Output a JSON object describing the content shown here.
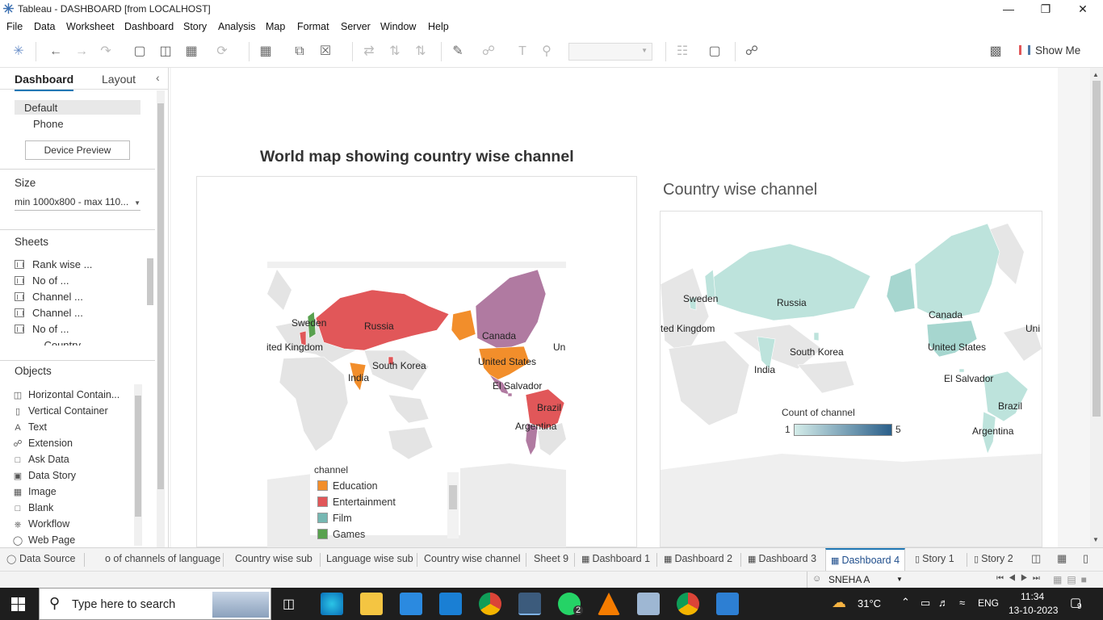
{
  "window": {
    "title": "Tableau - DASHBOARD [from LOCALHOST]"
  },
  "menu": [
    "File",
    "Data",
    "Worksheet",
    "Dashboard",
    "Story",
    "Analysis",
    "Map",
    "Format",
    "Server",
    "Window",
    "Help"
  ],
  "toolbar": {
    "show_me": "Show Me"
  },
  "left_panel": {
    "tabs": {
      "dashboard": "Dashboard",
      "layout": "Layout"
    },
    "device": {
      "default": "Default",
      "phone": "Phone",
      "preview_button": "Device Preview"
    },
    "size": {
      "heading": "Size",
      "value": "min 1000x800 - max 110..."
    },
    "sheets": {
      "heading": "Sheets",
      "items": [
        "Rank wise ...",
        "No of ...",
        "Channel ...",
        "Channel ...",
        "No of ...",
        "... Country ..."
      ]
    },
    "objects": {
      "heading": "Objects",
      "items": [
        {
          "label": "Horizontal Contain...",
          "icon": "horizontal-container-icon"
        },
        {
          "label": "Vertical Container",
          "icon": "vertical-container-icon"
        },
        {
          "label": "Text",
          "icon": "text-icon"
        },
        {
          "label": "Extension",
          "icon": "extension-icon"
        },
        {
          "label": "Ask Data",
          "icon": "ask-data-icon"
        },
        {
          "label": "Data Story",
          "icon": "data-story-icon"
        },
        {
          "label": "Image",
          "icon": "image-icon"
        },
        {
          "label": "Blank",
          "icon": "blank-icon"
        },
        {
          "label": "Workflow",
          "icon": "workflow-icon"
        },
        {
          "label": "Web Page",
          "icon": "web-page-icon"
        }
      ]
    }
  },
  "dashboard": {
    "left_title": "World map showing country wise channel",
    "right_title": "Country wise channel",
    "left_map": {
      "labels": [
        "Sweden",
        "Russia",
        "ited Kingdom",
        "India",
        "South Korea",
        "Canada",
        "United States",
        "El Salvador",
        "Brazil",
        "Argentina",
        "Un"
      ],
      "legend": {
        "title": "channel",
        "items": [
          {
            "label": "Education",
            "color": "#f28e2b"
          },
          {
            "label": "Entertainment",
            "color": "#e15759"
          },
          {
            "label": "Film",
            "color": "#76b7b2"
          },
          {
            "label": "Games",
            "color": "#59a14f"
          }
        ]
      },
      "colors": {
        "education": "#f28e2b",
        "entertainment": "#e15759",
        "film": "#76b7b2",
        "games": "#59a14f",
        "music": "#b07aa1"
      }
    },
    "right_map": {
      "labels": [
        "Sweden",
        "Russia",
        "ted Kingdom",
        "Canada",
        "South Korea",
        "United States",
        "India",
        "El Salvador",
        "Brazil",
        "Argentina",
        "Uni"
      ],
      "legend": {
        "title": "Count of channel",
        "min": "1",
        "max": "5",
        "color_low": "#d4ece9",
        "color_high": "#2a5f8a"
      }
    }
  },
  "sheet_tabs": [
    {
      "label": "Data Source",
      "active": false
    },
    {
      "label": "o of channels of language",
      "active": false
    },
    {
      "label": "Country wise sub",
      "active": false
    },
    {
      "label": "Language wise sub",
      "active": false
    },
    {
      "label": "Country wise channel",
      "active": false
    },
    {
      "label": "Sheet 9",
      "active": false
    },
    {
      "label": "Dashboard 1",
      "active": false
    },
    {
      "label": "Dashboard 2",
      "active": false
    },
    {
      "label": "Dashboard 3",
      "active": false
    },
    {
      "label": "Dashboard 4",
      "active": true
    },
    {
      "label": "Story 1",
      "active": false
    },
    {
      "label": "Story 2",
      "active": false
    }
  ],
  "status": {
    "user": "SNEHA A"
  },
  "taskbar": {
    "search_placeholder": "Type here to search",
    "weather": "31°C",
    "language": "ENG",
    "time": "11:34",
    "date": "13-10-2023",
    "notifications": "9",
    "whatsapp_badge": "2"
  }
}
